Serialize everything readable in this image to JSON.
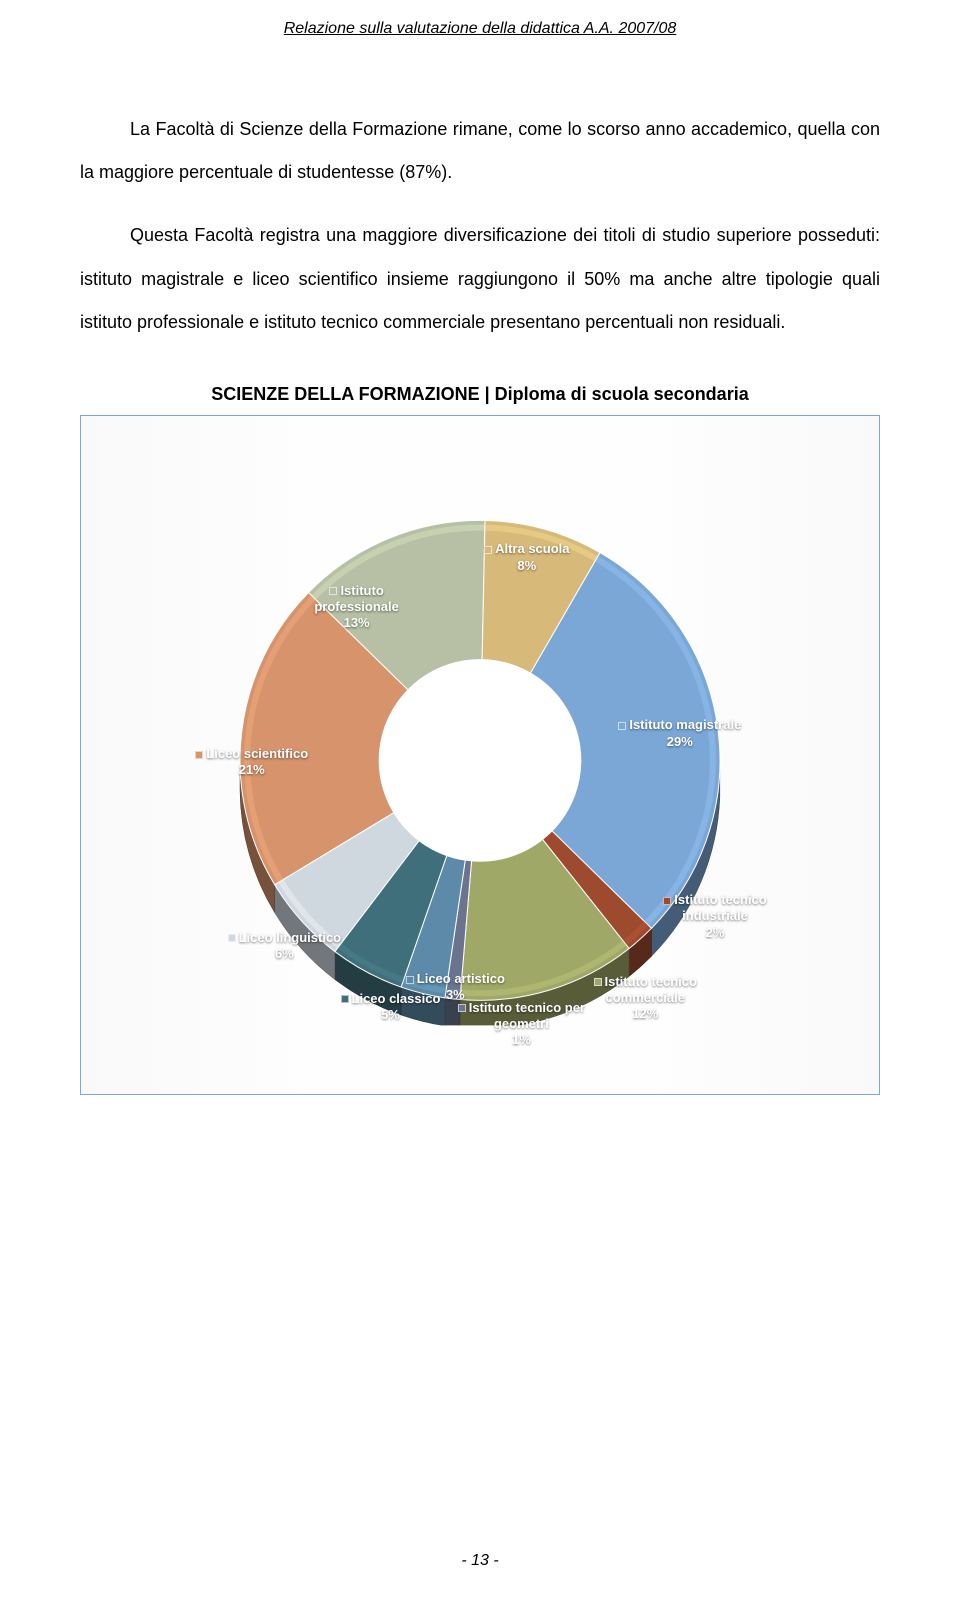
{
  "header": "Relazione sulla valutazione della didattica A.A. 2007/08",
  "paragraphs": {
    "p1": "La Facoltà di Scienze della Formazione rimane, come lo scorso anno accademico, quella con la maggiore percentuale di studentesse (87%).",
    "p2": "Questa Facoltà registra una maggiore diversificazione dei titoli di studio superiore posseduti: istituto magistrale e liceo scientifico insieme raggiungono il 50% ma anche altre tipologie quali istituto professionale e istituto tecnico commerciale presentano percentuali non residuali."
  },
  "chart": {
    "title": "SCIENZE DELLA FORMAZIONE | Diploma di scuola secondaria",
    "type": "donut-3d",
    "background_color": "#fdfdfd",
    "border_color": "#7ba7d7",
    "inner_radius_ratio": 0.42,
    "slices": [
      {
        "label": "Istituto magistrale",
        "value": 29,
        "color": "#7ba7d7"
      },
      {
        "label": "Istituto tecnico industriale",
        "value": 2,
        "color": "#9d4a2f"
      },
      {
        "label": "Istituto tecnico commerciale",
        "value": 12,
        "color": "#a0a868"
      },
      {
        "label": "Istituto tecnico per geometri",
        "value": 1,
        "color": "#6a748e"
      },
      {
        "label": "Liceo artistico",
        "value": 3,
        "color": "#5c8aa8"
      },
      {
        "label": "Liceo classico",
        "value": 5,
        "color": "#3f6f7a"
      },
      {
        "label": "Liceo linguistico",
        "value": 6,
        "color": "#cfd8df"
      },
      {
        "label": "Liceo scientifico",
        "value": 21,
        "color": "#d6936c"
      },
      {
        "label": "Istituto professionale",
        "value": 13,
        "color": "#b7c0a4"
      },
      {
        "label": "Altra scuola",
        "value": 8,
        "color": "#d7b97a"
      }
    ],
    "label_font_size": 13,
    "label_color": "#ffffff",
    "start_angle_deg": -60
  },
  "footer": "- 13 -"
}
